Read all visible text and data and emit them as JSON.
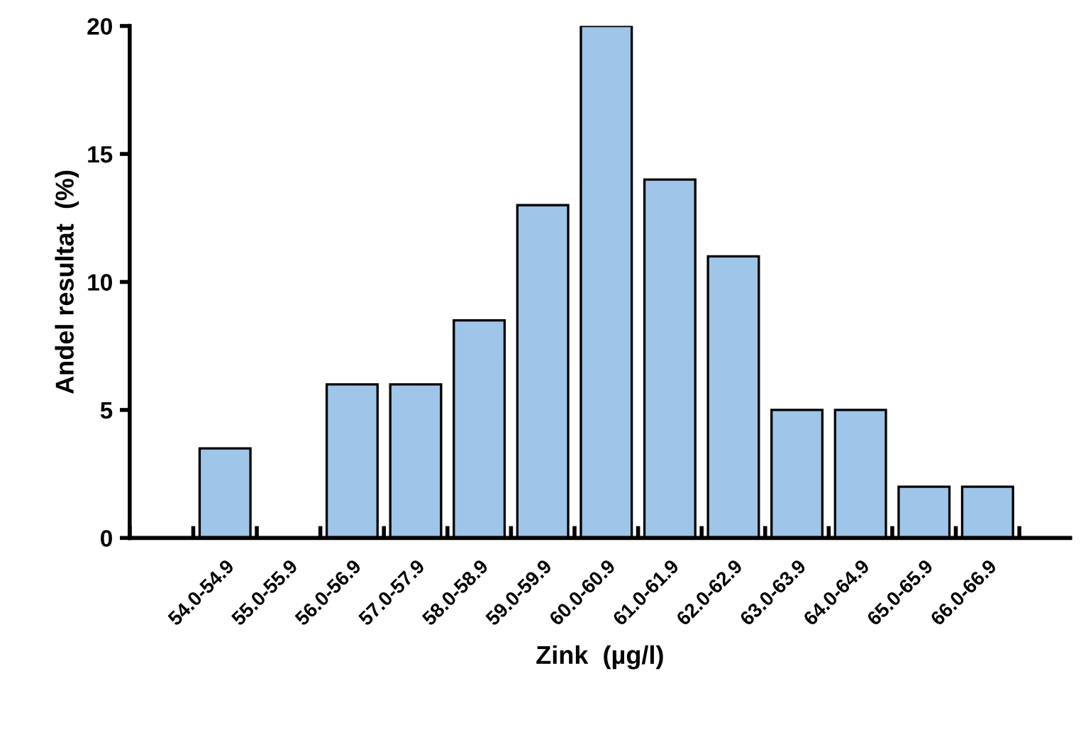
{
  "chart_data": {
    "type": "bar",
    "xlabel": "Zink  (µg/l)",
    "ylabel": "Andel resultat  (%)",
    "categories": [
      "54.0-54.9",
      "55.0-55.9",
      "56.0-56.9",
      "57.0-57.9",
      "58.0-58.9",
      "59.0-59.9",
      "60.0-60.9",
      "61.0-61.9",
      "62.0-62.9",
      "63.0-63.9",
      "64.0-64.9",
      "65.0-65.9",
      "66.0-66.9"
    ],
    "values": [
      3.5,
      null,
      6,
      6,
      8.5,
      13,
      20,
      14,
      11,
      5,
      5,
      2,
      2
    ],
    "color": "#9fc5e8",
    "ylim": [
      0,
      20
    ],
    "yticks": [
      0,
      5,
      10,
      15,
      20
    ],
    "grid": false,
    "legend": false
  }
}
